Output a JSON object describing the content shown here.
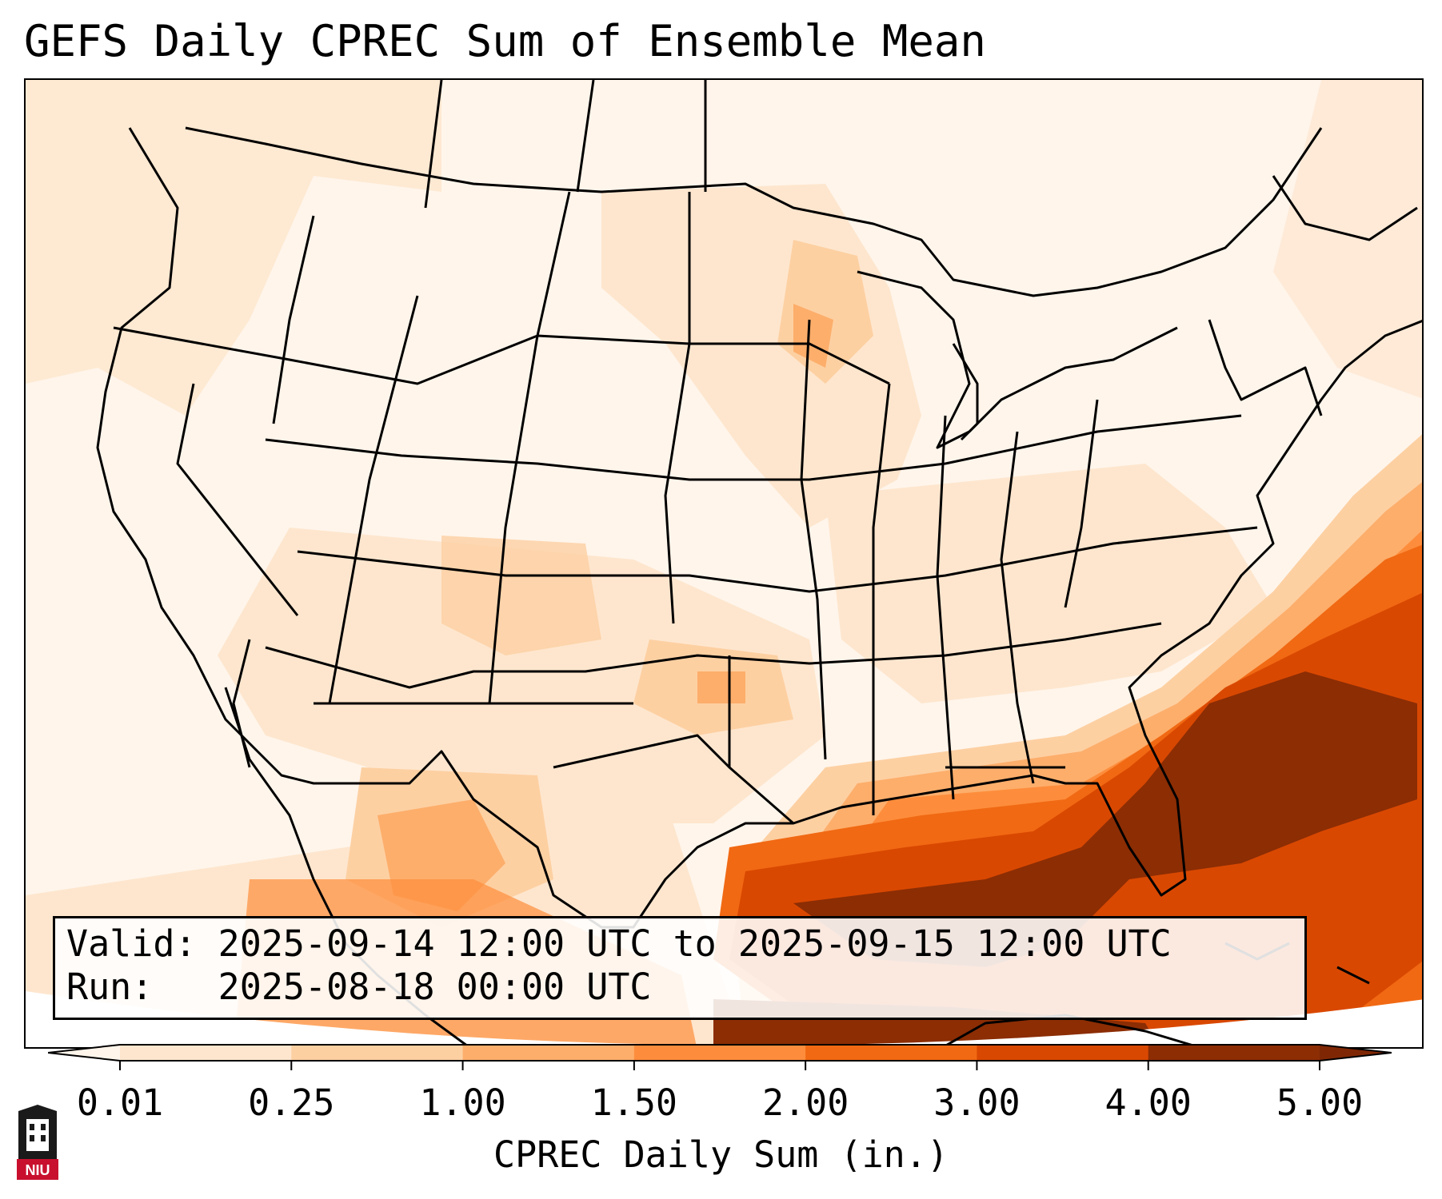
{
  "title": "GEFS Daily CPREC Sum of Ensemble Mean",
  "info": {
    "valid_label": "Valid:",
    "valid_value": "2025-09-14 12:00 UTC to 2025-09-15 12:00 UTC",
    "run_label": "Run:",
    "run_value": "2025-08-18 00:00 UTC"
  },
  "colorbar": {
    "label": "CPREC Daily Sum (in.)",
    "ticks": [
      "0.01",
      "0.25",
      "1.00",
      "1.50",
      "2.00",
      "3.00",
      "4.00",
      "5.00"
    ],
    "colors": [
      "#fff5eb",
      "#fee6ce",
      "#fdd0a2",
      "#fdae6b",
      "#fd8d3c",
      "#f16913",
      "#d94801",
      "#8c2d04"
    ],
    "under_color": "#ffffff",
    "over_color": "#7f2704"
  },
  "logo": {
    "name": "NIU",
    "colors": {
      "shield": "#1a1a1a",
      "banner": "#c8102e"
    }
  }
}
